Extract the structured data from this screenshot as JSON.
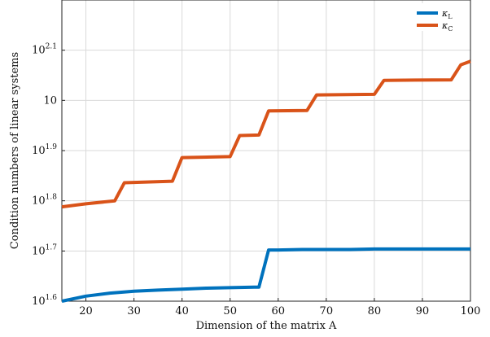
{
  "chart_data": {
    "type": "line",
    "xlabel": "Dimension of the matrix A",
    "ylabel": "Condition numbers of linear systems",
    "xlim": [
      15,
      100
    ],
    "ylim_log10": [
      1.6,
      2.2
    ],
    "y_scale": "log",
    "grid": true,
    "legend_placement": "top-right",
    "x_ticks": [
      20,
      30,
      40,
      50,
      60,
      70,
      80,
      90,
      100
    ],
    "y_ticks": [
      {
        "base": "10",
        "exp": "1.6",
        "value": 1.6
      },
      {
        "base": "10",
        "exp": "1.7",
        "value": 1.7
      },
      {
        "base": "10",
        "exp": "1.8",
        "value": 1.8
      },
      {
        "base": "10",
        "exp": "1.9",
        "value": 1.9
      },
      {
        "base": "10",
        "exp": "",
        "value": 2.0
      },
      {
        "base": "10",
        "exp": "2.1",
        "value": 2.1
      }
    ],
    "series": [
      {
        "name": "κL",
        "legend": {
          "symbol": "κ",
          "sub": "L"
        },
        "color": "#0072BD",
        "x": [
          15,
          20,
          25,
          30,
          35,
          40,
          45,
          50,
          55,
          56,
          58,
          60,
          65,
          70,
          75,
          80,
          85,
          90,
          95,
          100
        ],
        "log10_y": [
          1.6,
          1.61,
          1.616,
          1.62,
          1.622,
          1.624,
          1.626,
          1.627,
          1.628,
          1.628,
          1.702,
          1.702,
          1.703,
          1.703,
          1.703,
          1.704,
          1.704,
          1.704,
          1.704,
          1.704
        ]
      },
      {
        "name": "κC",
        "legend": {
          "symbol": "κ",
          "sub": "C"
        },
        "color": "#D95319",
        "x": [
          15,
          20,
          26,
          28,
          38,
          40,
          50,
          52,
          56,
          58,
          66,
          68,
          80,
          82,
          96,
          98,
          100
        ],
        "log10_y": [
          1.788,
          1.794,
          1.8,
          1.836,
          1.839,
          1.886,
          1.888,
          1.93,
          1.931,
          1.979,
          1.98,
          2.011,
          2.012,
          2.04,
          2.041,
          2.071,
          2.078
        ]
      }
    ]
  }
}
